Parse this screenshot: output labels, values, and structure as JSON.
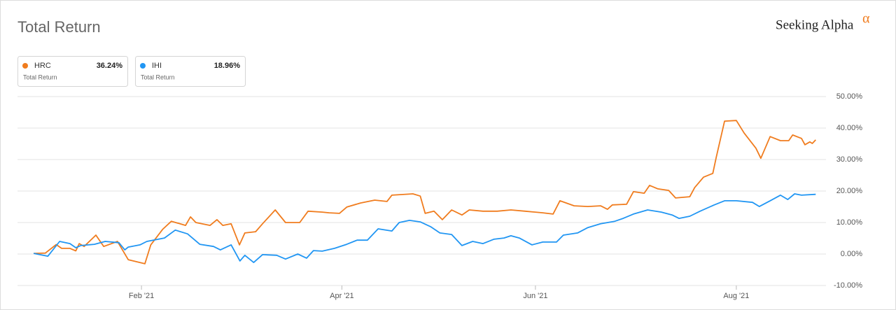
{
  "chart_data": {
    "type": "line",
    "title": "Total Return",
    "logo": "Seeking Alpha",
    "logo_mark": "α",
    "xlim": [
      -3.3,
      161.7
    ],
    "xticks": [
      {
        "value": 22,
        "label": "Feb '21"
      },
      {
        "value": 62.9,
        "label": "Apr '21"
      },
      {
        "value": 102.4,
        "label": "Jun '21"
      },
      {
        "value": 143.4,
        "label": "Aug '21"
      }
    ],
    "ylim": [
      -10,
      50
    ],
    "yticks": [
      {
        "value": -10,
        "label": "-10.00%"
      },
      {
        "value": 0,
        "label": "0.00%"
      },
      {
        "value": 10,
        "label": "10.00%"
      },
      {
        "value": 20,
        "label": "20.00%"
      },
      {
        "value": 30,
        "label": "30.00%"
      },
      {
        "value": 40,
        "label": "40.00%"
      },
      {
        "value": 50,
        "label": "50.00%"
      }
    ],
    "grid": true,
    "series": [
      {
        "name": "HRC",
        "color": "#f07c1e",
        "sublabel": "Total Return",
        "summary": {
          "value": 36.24,
          "label": "36.24%"
        },
        "x": [
          0,
          2.4,
          4.6,
          5.7,
          7.4,
          8.6,
          9.3,
          10.3,
          12.7,
          14.3,
          17.1,
          19.3,
          22.7,
          23.9,
          26.3,
          28.1,
          31,
          32,
          33.1,
          36,
          37.4,
          38.6,
          40.3,
          42,
          43.1,
          45.3,
          46.7,
          49.3,
          51.4,
          54.3,
          56,
          58.9,
          60.3,
          62.4,
          63.9,
          66.7,
          69.6,
          72.1,
          73.1,
          77.4,
          78.9,
          79.9,
          81.7,
          83.4,
          85.3,
          87.4,
          88.9,
          91.7,
          94.6,
          97.4,
          100.3,
          103.9,
          106,
          107.4,
          110.3,
          113.1,
          115.7,
          117.1,
          118.1,
          121,
          122.4,
          124.6,
          125.7,
          127.4,
          129.6,
          131,
          133.9,
          134.9,
          136.7,
          138.6,
          139.3,
          141,
          143.4,
          145,
          147.4,
          148.4,
          150.3,
          152.4,
          154.1,
          154.9,
          156.7,
          157.4,
          158.4,
          158.9,
          159.6
        ],
        "values": [
          0.2,
          0.3,
          3,
          1.8,
          1.8,
          1,
          3.3,
          2.4,
          6,
          2.4,
          4,
          -1.8,
          -3.1,
          2.9,
          7.8,
          10.4,
          9.1,
          11.8,
          10,
          9.1,
          10.9,
          9.1,
          9.6,
          2.9,
          6.7,
          7.1,
          9.6,
          14,
          10,
          10,
          13.6,
          13.3,
          13.1,
          12.9,
          14.9,
          16.2,
          17.1,
          16.7,
          18.7,
          19.1,
          18.4,
          12.9,
          13.6,
          10.9,
          14,
          12.4,
          14,
          13.6,
          13.6,
          14,
          13.6,
          13.1,
          12.7,
          16.9,
          15.3,
          15.1,
          15.3,
          14.2,
          15.6,
          15.8,
          19.8,
          19.3,
          21.8,
          20.7,
          20.2,
          17.8,
          18.2,
          21.1,
          24.4,
          25.6,
          30.7,
          42.2,
          42.4,
          38.4,
          33.6,
          30.4,
          37.3,
          36,
          36,
          37.8,
          36.7,
          34.7,
          35.6,
          35.1,
          36.24
        ]
      },
      {
        "name": "IHI",
        "color": "#2196f3",
        "sublabel": "Total Return",
        "summary": {
          "value": 18.96,
          "label": "18.96%"
        },
        "x": [
          0,
          2.9,
          5.3,
          7.4,
          8.6,
          9.6,
          12.4,
          14.6,
          17.4,
          18.6,
          19.3,
          21.7,
          23.1,
          26.7,
          28.9,
          31.4,
          33.9,
          36.7,
          38.1,
          40.3,
          42.1,
          43.1,
          44.9,
          46.7,
          49.6,
          51.4,
          53.9,
          55.7,
          57.1,
          58.9,
          61.4,
          63.9,
          66,
          68.1,
          70.3,
          73.1,
          74.6,
          76.7,
          78.9,
          81,
          82.9,
          85.3,
          87.4,
          89.6,
          91.7,
          93.9,
          96,
          97.4,
          99.1,
          101.7,
          103.9,
          106.7,
          108.1,
          111,
          113.1,
          115.7,
          118.6,
          120.3,
          122.4,
          125.3,
          128.1,
          130.3,
          131.7,
          133.9,
          136,
          138.9,
          141,
          143.4,
          146.7,
          148.1,
          150.3,
          152.4,
          153.9,
          155.3,
          156.7,
          159.6
        ],
        "values": [
          0.2,
          -0.7,
          4,
          3.3,
          2,
          2.7,
          3.1,
          4,
          3.6,
          1.3,
          2.2,
          2.9,
          4,
          5.1,
          7.6,
          6.4,
          3.1,
          2.4,
          1.3,
          2.9,
          -2.2,
          -0.4,
          -2.7,
          -0.2,
          -0.4,
          -1.6,
          0,
          -1.3,
          1.1,
          0.9,
          1.8,
          3.1,
          4.4,
          4.4,
          8,
          7.3,
          10,
          10.7,
          10.2,
          8.7,
          6.7,
          6.2,
          2.7,
          4,
          3.3,
          4.7,
          5.1,
          5.8,
          5.1,
          2.9,
          3.8,
          3.8,
          6,
          6.7,
          8.4,
          9.6,
          10.4,
          11.3,
          12.7,
          14,
          13.3,
          12.4,
          11.3,
          12,
          13.6,
          15.6,
          16.9,
          16.9,
          16.4,
          15.1,
          16.9,
          18.7,
          17.3,
          19.1,
          18.7,
          18.96
        ]
      }
    ]
  }
}
